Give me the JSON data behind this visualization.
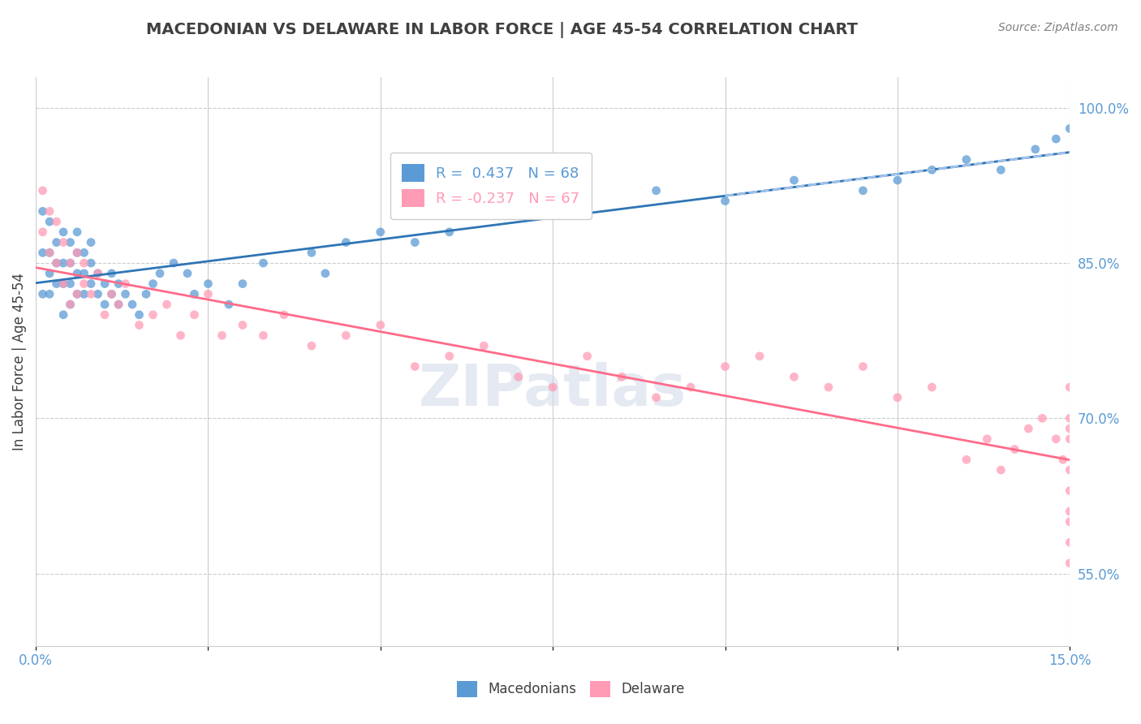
{
  "title": "MACEDONIAN VS DELAWARE IN LABOR FORCE | AGE 45-54 CORRELATION CHART",
  "source": "Source: ZipAtlas.com",
  "xlabel": "",
  "ylabel": "In Labor Force | Age 45-54",
  "xlim": [
    0.0,
    0.15
  ],
  "ylim": [
    0.48,
    1.03
  ],
  "xticks": [
    0.0,
    0.025,
    0.05,
    0.075,
    0.1,
    0.125,
    0.15
  ],
  "xticklabels": [
    "0.0%",
    "",
    "",
    "",
    "",
    "",
    "15.0%"
  ],
  "yticks": [
    0.55,
    0.7,
    0.85,
    1.0
  ],
  "yticklabels": [
    "55.0%",
    "70.0%",
    "85.0%",
    "100.0%"
  ],
  "blue_color": "#5B9BD5",
  "pink_color": "#FF9BB5",
  "blue_line_color": "#2E75B6",
  "pink_line_color": "#FF6B8A",
  "dashed_line_color": "#A0C0E8",
  "legend_R_blue": "R =  0.437",
  "legend_N_blue": "N = 68",
  "legend_R_pink": "R = -0.237",
  "legend_N_pink": "N = 67",
  "grid_color": "#CCCCCC",
  "background_color": "#FFFFFF",
  "title_color": "#404040",
  "axis_color": "#5B9BD5",
  "watermark": "ZIPatlas",
  "blue_x": [
    0.001,
    0.001,
    0.001,
    0.002,
    0.002,
    0.002,
    0.002,
    0.003,
    0.003,
    0.003,
    0.004,
    0.004,
    0.004,
    0.004,
    0.005,
    0.005,
    0.005,
    0.005,
    0.006,
    0.006,
    0.006,
    0.006,
    0.007,
    0.007,
    0.007,
    0.008,
    0.008,
    0.008,
    0.009,
    0.009,
    0.01,
    0.01,
    0.011,
    0.011,
    0.012,
    0.012,
    0.013,
    0.014,
    0.015,
    0.016,
    0.017,
    0.018,
    0.02,
    0.022,
    0.023,
    0.025,
    0.028,
    0.03,
    0.033,
    0.04,
    0.042,
    0.045,
    0.05,
    0.055,
    0.06,
    0.07,
    0.08,
    0.09,
    0.1,
    0.11,
    0.12,
    0.125,
    0.13,
    0.135,
    0.14,
    0.145,
    0.148,
    0.15
  ],
  "blue_y": [
    0.82,
    0.86,
    0.9,
    0.82,
    0.84,
    0.86,
    0.89,
    0.83,
    0.85,
    0.87,
    0.8,
    0.83,
    0.85,
    0.88,
    0.81,
    0.83,
    0.85,
    0.87,
    0.82,
    0.84,
    0.86,
    0.88,
    0.82,
    0.84,
    0.86,
    0.83,
    0.85,
    0.87,
    0.82,
    0.84,
    0.81,
    0.83,
    0.82,
    0.84,
    0.81,
    0.83,
    0.82,
    0.81,
    0.8,
    0.82,
    0.83,
    0.84,
    0.85,
    0.84,
    0.82,
    0.83,
    0.81,
    0.83,
    0.85,
    0.86,
    0.84,
    0.87,
    0.88,
    0.87,
    0.88,
    0.9,
    0.91,
    0.92,
    0.91,
    0.93,
    0.92,
    0.93,
    0.94,
    0.95,
    0.94,
    0.96,
    0.97,
    0.98
  ],
  "pink_x": [
    0.001,
    0.001,
    0.002,
    0.002,
    0.003,
    0.003,
    0.004,
    0.004,
    0.005,
    0.005,
    0.006,
    0.006,
    0.007,
    0.007,
    0.008,
    0.009,
    0.01,
    0.011,
    0.012,
    0.013,
    0.015,
    0.017,
    0.019,
    0.021,
    0.023,
    0.025,
    0.027,
    0.03,
    0.033,
    0.036,
    0.04,
    0.045,
    0.05,
    0.055,
    0.06,
    0.065,
    0.07,
    0.075,
    0.08,
    0.085,
    0.09,
    0.095,
    0.1,
    0.105,
    0.11,
    0.115,
    0.12,
    0.125,
    0.13,
    0.135,
    0.138,
    0.14,
    0.142,
    0.144,
    0.146,
    0.148,
    0.149,
    0.15,
    0.15,
    0.15,
    0.15,
    0.15,
    0.15,
    0.15,
    0.15,
    0.15,
    0.15
  ],
  "pink_y": [
    0.88,
    0.92,
    0.86,
    0.9,
    0.85,
    0.89,
    0.83,
    0.87,
    0.81,
    0.85,
    0.82,
    0.86,
    0.83,
    0.85,
    0.82,
    0.84,
    0.8,
    0.82,
    0.81,
    0.83,
    0.79,
    0.8,
    0.81,
    0.78,
    0.8,
    0.82,
    0.78,
    0.79,
    0.78,
    0.8,
    0.77,
    0.78,
    0.79,
    0.75,
    0.76,
    0.77,
    0.74,
    0.73,
    0.76,
    0.74,
    0.72,
    0.73,
    0.75,
    0.76,
    0.74,
    0.73,
    0.75,
    0.72,
    0.73,
    0.66,
    0.68,
    0.65,
    0.67,
    0.69,
    0.7,
    0.68,
    0.66,
    0.61,
    0.58,
    0.7,
    0.63,
    0.68,
    0.6,
    0.56,
    0.73,
    0.65,
    0.69
  ]
}
